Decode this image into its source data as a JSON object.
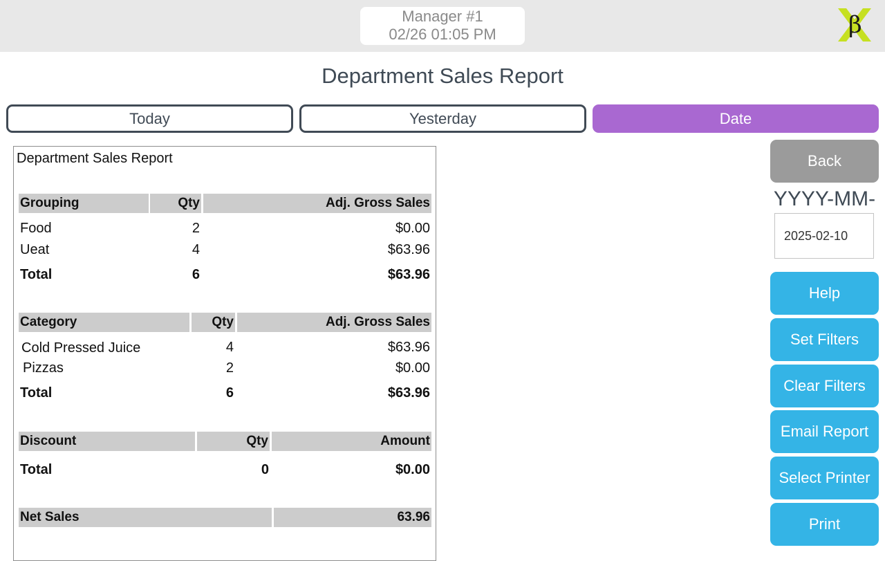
{
  "header": {
    "user": "Manager #1",
    "datetime": "02/26 01:05 PM",
    "logo_text": "β"
  },
  "page_title": "Department Sales Report",
  "tabs": [
    {
      "label": "Today",
      "active": false
    },
    {
      "label": "Yesterday",
      "active": false
    },
    {
      "label": "Date",
      "active": true
    }
  ],
  "report": {
    "title": "Department Sales Report",
    "grouping": {
      "headers": [
        "Grouping",
        "Qty",
        "Adj. Gross Sales"
      ],
      "rows": [
        [
          "Food",
          "2",
          "$0.00"
        ],
        [
          "Ueat",
          "4",
          "$63.96"
        ]
      ],
      "total": [
        "Total",
        "6",
        "$63.96"
      ]
    },
    "category": {
      "headers": [
        "Category",
        "Qty",
        "Adj. Gross Sales"
      ],
      "rows": [
        [
          "Cold Pressed Juice",
          "4",
          "$63.96"
        ],
        [
          "Pizzas",
          "2",
          "$0.00"
        ]
      ],
      "total": [
        "Total",
        "6",
        "$63.96"
      ]
    },
    "discount": {
      "headers": [
        "Discount",
        "Qty",
        "Amount"
      ],
      "total": [
        "Total",
        "0",
        "$0.00"
      ]
    },
    "net_sales": {
      "label": "Net Sales",
      "value": "63.96"
    }
  },
  "sidebar": {
    "back_label": "Back",
    "date_label": "YYYY-MM-DD",
    "date_value": "2025-02-10",
    "buttons": [
      "Help",
      "Set Filters",
      "Clear Filters",
      "Email Report",
      "Select Printer",
      "Print"
    ]
  },
  "colors": {
    "accent_purple": "#a968d1",
    "button_blue": "#34b4e6",
    "back_gray": "#9b9b9b",
    "logo_green": "#c6e021"
  },
  "icons": [
    "logo-icon"
  ]
}
